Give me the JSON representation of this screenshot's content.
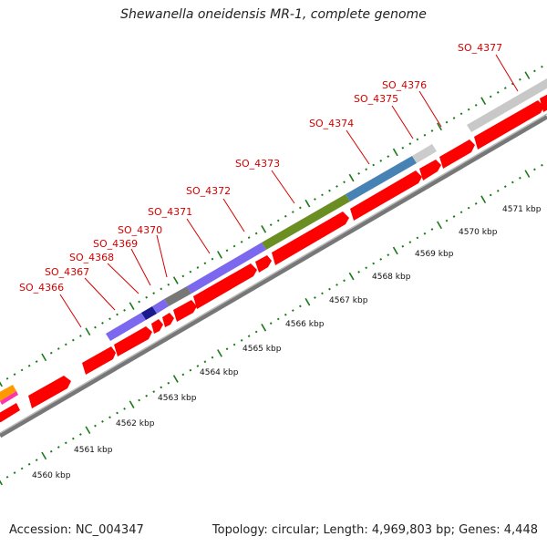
{
  "title": "Shewanella oneidensis MR-1, complete genome",
  "footer": {
    "accession": "Accession: NC_004347",
    "summary": "Topology: circular; Length: 4,969,803 bp; Genes: 4,448"
  },
  "colors": {
    "backbone": "#888888",
    "cds_red": "#ff0000",
    "tick_green": "#1a7a1a",
    "label_red": "#d40000"
  },
  "gene_labels": [
    "SO_4366",
    "SO_4367",
    "SO_4368",
    "SO_4369",
    "SO_4370",
    "SO_4371",
    "SO_4372",
    "SO_4373",
    "SO_4374",
    "SO_4375",
    "SO_4376",
    "SO_4377"
  ],
  "kbp_labels": [
    "4560 kbp",
    "4561 kbp",
    "4562 kbp",
    "4563 kbp",
    "4564 kbp",
    "4565 kbp",
    "4566 kbp",
    "4567 kbp",
    "4568 kbp",
    "4569 kbp",
    "4570 kbp",
    "4571 kbp"
  ]
}
